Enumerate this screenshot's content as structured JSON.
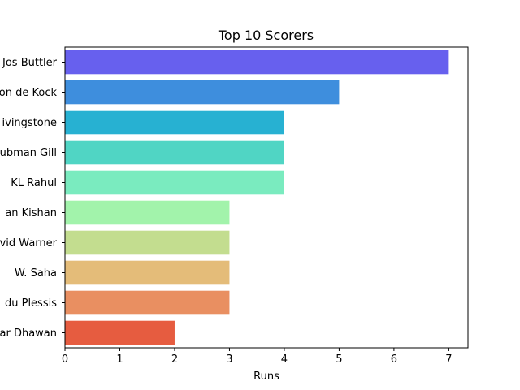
{
  "chart_data": {
    "type": "bar",
    "orientation": "horizontal",
    "title": "Top 10 Scorers",
    "xlabel": "Runs",
    "ylabel": "",
    "xlim": [
      0,
      7.35
    ],
    "xticks": [
      0,
      1,
      2,
      3,
      4,
      5,
      6,
      7
    ],
    "grid": false,
    "categories": [
      "Jos Buttler",
      "Quinton de Kock",
      "Liam Livingstone",
      "Shubman Gill",
      "KL Rahul",
      "Ishan Kishan",
      "David Warner",
      "W. Saha",
      "Faf du Plessis",
      "Shikhar Dhawan"
    ],
    "category_labels_visible": [
      "Jos Buttler",
      "on de Kock",
      "ivingstone",
      "ubman Gill",
      "KL Rahul",
      "an Kishan",
      "vid Warner",
      "W. Saha",
      "du Plessis",
      "ar Dhawan"
    ],
    "values": [
      7,
      5,
      4,
      4,
      4,
      3,
      3,
      3,
      3,
      2
    ],
    "colors": [
      "#6760ee",
      "#3e8edd",
      "#27b1d2",
      "#50d5c4",
      "#7aebbf",
      "#a2f3ab",
      "#c3dd8f",
      "#e4bc79",
      "#e98f61",
      "#e65c40"
    ]
  }
}
